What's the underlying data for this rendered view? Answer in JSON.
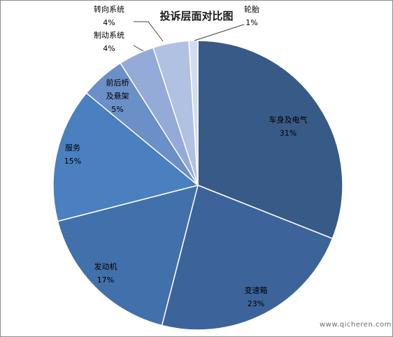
{
  "chart_data": {
    "type": "pie",
    "title": "投诉层面对比图",
    "slices": [
      {
        "name": "车身及电气",
        "value": 31,
        "pct_label": "31%",
        "color": "#375a86"
      },
      {
        "name": "变速箱",
        "value": 23,
        "pct_label": "23%",
        "color": "#3c649a"
      },
      {
        "name": "发动机",
        "value": 17,
        "pct_label": "17%",
        "color": "#4270ab"
      },
      {
        "name": "服务",
        "value": 15,
        "pct_label": "15%",
        "color": "#4a7fc0"
      },
      {
        "name": "前后桥及悬架",
        "value": 5,
        "pct_label": "5%",
        "color": "#6b8fc7"
      },
      {
        "name": "转向系统",
        "value": 4,
        "pct_label": "4%",
        "color": "#93abd6"
      },
      {
        "name": "制动系统",
        "value": 4,
        "pct_label": "4%",
        "color": "#b0c1e1"
      },
      {
        "name": "轮胎",
        "value": 1,
        "pct_label": "1%",
        "color": "#d3dcef"
      }
    ]
  },
  "watermark": "www.qicheren.com.cn"
}
